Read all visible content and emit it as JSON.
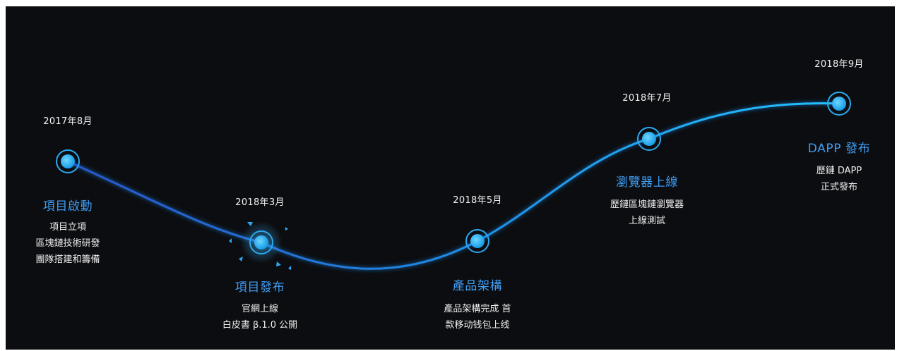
{
  "colors": {
    "background": "#0c0d10",
    "curve_start": "#2a55cf",
    "curve_end": "#22c3ff",
    "title": "#3f9cf2",
    "text": "#ffffff"
  },
  "milestones": [
    {
      "date": "2017年8月",
      "title": "項目啟動",
      "lines": [
        "項目立項",
        "區塊鏈技術研發",
        "團隊搭建和籌備"
      ]
    },
    {
      "date": "2018年3月",
      "title": "項目發布",
      "lines": [
        "官網上線",
        "白皮書 β.1.0 公開"
      ]
    },
    {
      "date": "2018年5月",
      "title": "產品架構",
      "lines": [
        "產品架構完成 首",
        "款移动钱包上线"
      ]
    },
    {
      "date": "2018年7月",
      "title": "瀏覽器上線",
      "lines": [
        "歷鏈區塊鏈瀏覽器",
        "上線測試"
      ]
    },
    {
      "date": "2018年9月",
      "title": "DAPP 發布",
      "lines": [
        "歷鏈 DAPP",
        "正式發布"
      ]
    }
  ]
}
